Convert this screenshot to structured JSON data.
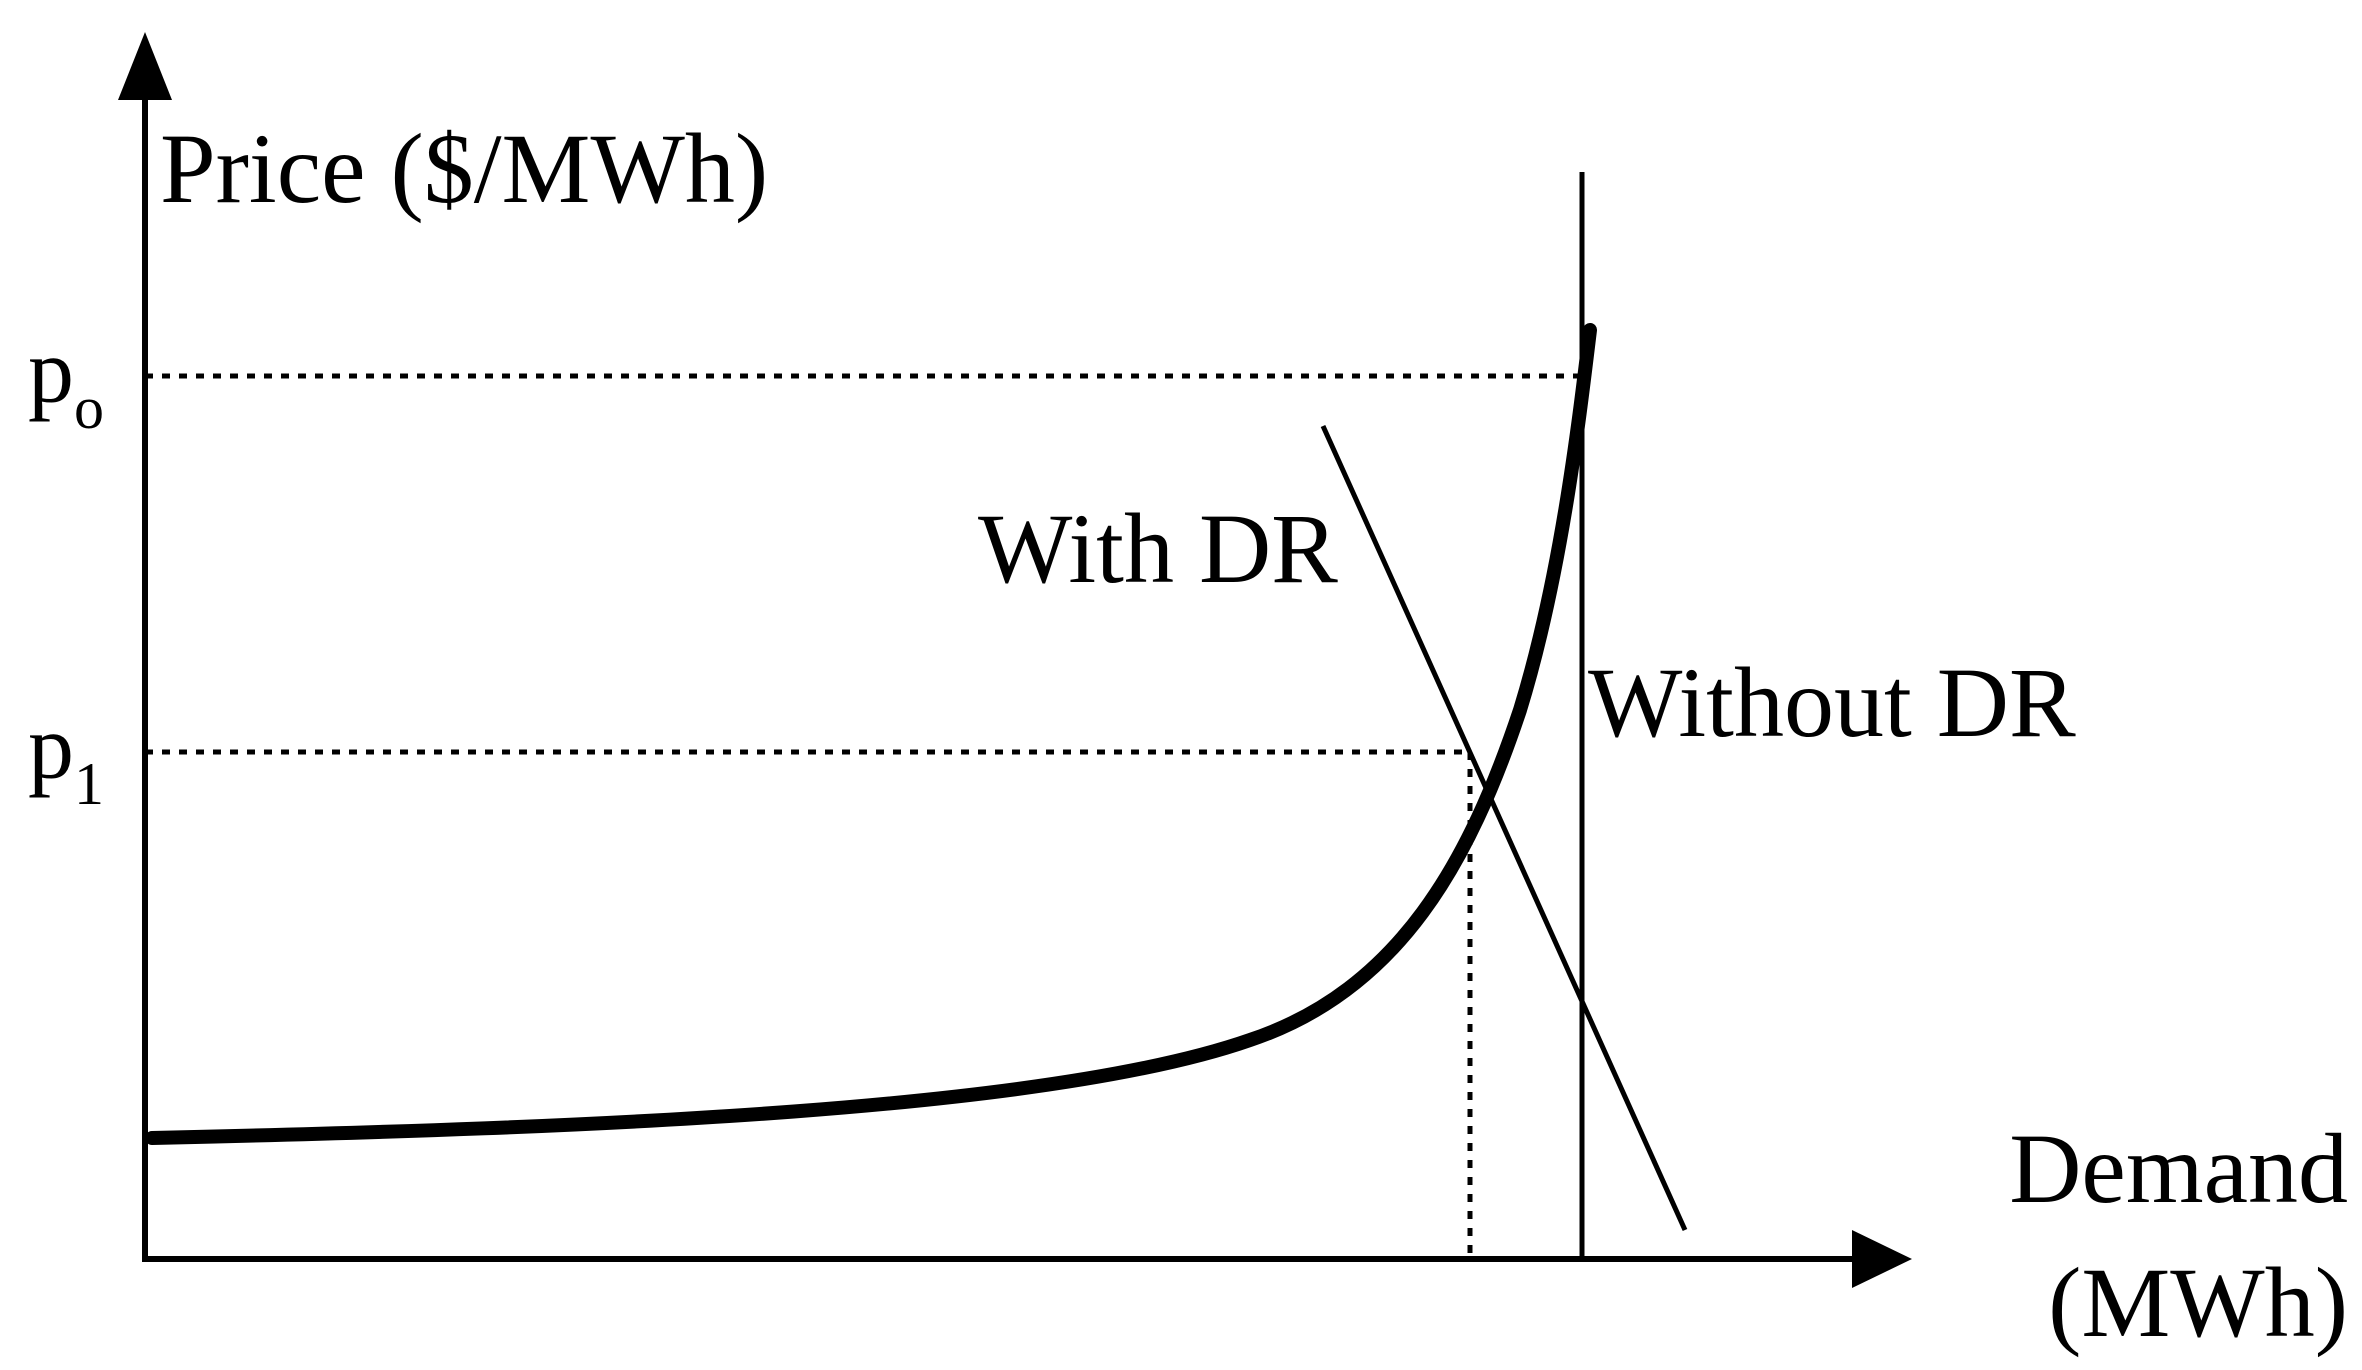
{
  "y_axis_label": "Price ($/MWh)",
  "x_axis_label_line1": "Demand",
  "x_axis_label_line2": "(MWh)",
  "price_levels": [
    {
      "letter": "p",
      "subscript": "o"
    },
    {
      "letter": "p",
      "subscript": "1"
    }
  ],
  "curve_labels": {
    "with_dr": "With DR",
    "without_dr": "Without DR"
  },
  "colors": {
    "ink": "#000000",
    "background": "#ffffff"
  }
}
